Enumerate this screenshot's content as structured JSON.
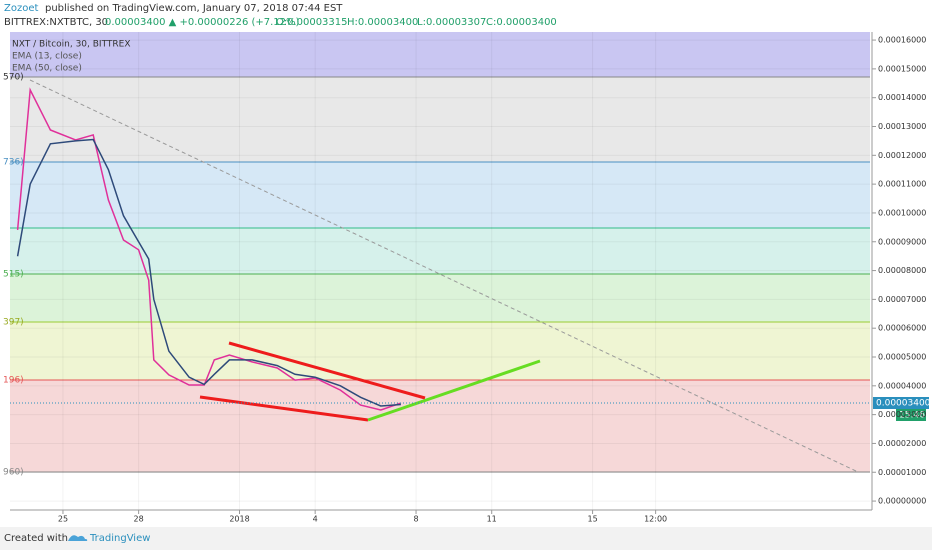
{
  "header": {
    "publisher": "Zozoet",
    "published": "published on TradingView.com, January 07, 2018 07:44 EST",
    "symbol": "BITTREX:NXTBTC, 30",
    "ohlc": "0.00003400 ▲ +0.00000226 (+7.12%)",
    "o": "O:0.00003315",
    "h": "H:0.00003400",
    "l": "L:0.00003307",
    "c": "C:0.00003400"
  },
  "footer": {
    "created": "Created with",
    "brand": "TradingView"
  },
  "chart_data": {
    "type": "line",
    "legend_title": "NXT / Bitcoin, 30, BITTREX",
    "fib_labels": [
      "570)",
      "736)",
      "515)",
      "397)",
      "196)",
      "960)"
    ],
    "last_price_label": "0.00003400",
    "countdown": "15:46",
    "x": [
      -1.8,
      -1.3,
      -0.5,
      0.5,
      1.2,
      1.8,
      2.4,
      3.0,
      3.4,
      3.6,
      4.2,
      5.0,
      5.6,
      6.0,
      6.6,
      7.5,
      8.5,
      9.2,
      10.0,
      11.0,
      11.8,
      12.6,
      13.4
    ],
    "series": [
      {
        "name": "EMA (13, close)",
        "color": "#e0309a",
        "values": [
          9.41e-05,
          0.0001427,
          0.0001288,
          0.0001253,
          0.0001271,
          0.0001045,
          9.06e-05,
          8.72e-05,
          7.67e-05,
          4.9e-05,
          4.38e-05,
          4.03e-05,
          4.03e-05,
          4.9e-05,
          5.07e-05,
          4.83e-05,
          4.62e-05,
          4.2e-05,
          4.27e-05,
          3.85e-05,
          3.33e-05,
          3.16e-05,
          3.4e-05
        ]
      },
      {
        "name": "EMA (50, close)",
        "color": "#2e4a7a",
        "values": [
          8.5e-05,
          0.00011,
          0.000124,
          0.000125,
          0.0001255,
          0.000115,
          9.9e-05,
          9e-05,
          8.4e-05,
          7e-05,
          5.2e-05,
          4.3e-05,
          4.05e-05,
          4.4e-05,
          4.9e-05,
          4.9e-05,
          4.7e-05,
          4.4e-05,
          4.3e-05,
          4e-05,
          3.6e-05,
          3.3e-05,
          3.35e-05
        ]
      }
    ],
    "xlim": [
      -2.1,
      32
    ],
    "xticks": [
      {
        "value": 0,
        "label": "25"
      },
      {
        "value": 3,
        "label": "28"
      },
      {
        "value": 7,
        "label": "2018"
      },
      {
        "value": 10,
        "label": "4"
      },
      {
        "value": 14,
        "label": "8"
      },
      {
        "value": 17,
        "label": "11"
      },
      {
        "value": 21,
        "label": "15"
      },
      {
        "value": 23.5,
        "label": "12:00"
      }
    ],
    "ylim": [
      -3.1e-06,
      0.0001628
    ],
    "yticks": [
      {
        "value": 0,
        "label": "0.00000000"
      },
      {
        "value": 1e-05,
        "label": "0.00001000"
      },
      {
        "value": 2e-05,
        "label": "0.00002000"
      },
      {
        "value": 3e-05,
        "label": "0.00003000"
      },
      {
        "value": 4e-05,
        "label": "0.00004000"
      },
      {
        "value": 5e-05,
        "label": "0.00005000"
      },
      {
        "value": 6e-05,
        "label": "0.00006000"
      },
      {
        "value": 7e-05,
        "label": "0.00007000"
      },
      {
        "value": 8e-05,
        "label": "0.00008000"
      },
      {
        "value": 9e-05,
        "label": "0.00009000"
      },
      {
        "value": 0.0001,
        "label": "0.00010000"
      },
      {
        "value": 0.00011,
        "label": "0.00011000"
      },
      {
        "value": 0.00012,
        "label": "0.00012000"
      },
      {
        "value": 0.00013,
        "label": "0.00013000"
      },
      {
        "value": 0.00014,
        "label": "0.00014000"
      },
      {
        "value": 0.00015,
        "label": "0.00015000"
      },
      {
        "value": 0.00016,
        "label": "0.00016000"
      }
    ],
    "grid": true
  }
}
